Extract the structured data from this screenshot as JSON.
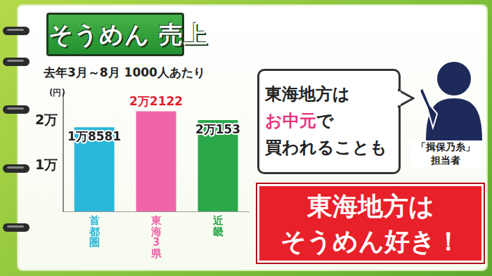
{
  "chart_data": {
    "type": "bar",
    "title": "そうめん 売上",
    "subtitle": "去年3月～8月 1000人あたり",
    "y_label": "(円)",
    "categories": [
      "首都圏",
      "東海3県",
      "近畿"
    ],
    "values": [
      18581,
      22122,
      20153
    ],
    "value_labels": [
      "1万8581",
      "2万2122",
      "2万153"
    ],
    "colors": [
      "#2ab7d9",
      "#f064aa",
      "#2aa84a"
    ],
    "ylim": [
      0,
      26000
    ],
    "yticks": [
      {
        "value": 10000,
        "label": "1万"
      },
      {
        "value": 20000,
        "label": "2万"
      }
    ],
    "grid": false,
    "data_labels": true
  },
  "annotations": {
    "bubble": {
      "lines": [
        "東海地方は",
        "お中元で",
        "買われることも"
      ],
      "highlight": "お中元"
    },
    "speaker": [
      "「揖保乃糸」",
      "担当者"
    ],
    "conclusion": [
      "東海地方は",
      "そうめん好き！"
    ]
  }
}
